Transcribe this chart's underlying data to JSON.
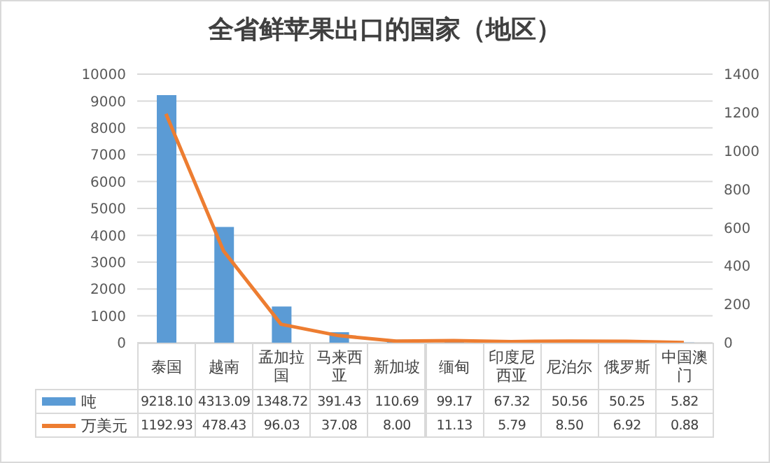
{
  "chart_data": {
    "type": "bar",
    "title": "全省鲜苹果出口的国家（地区）",
    "categories": [
      "泰国",
      "越南",
      "孟加拉国",
      "马来西亚",
      "新加坡",
      "缅甸",
      "印度尼西亚",
      "尼泊尔",
      "俄罗斯",
      "中国澳门"
    ],
    "series": [
      {
        "name": "吨",
        "color": "#5b9bd5",
        "values": [
          9218.1,
          4313.09,
          1348.72,
          391.43,
          110.69,
          99.17,
          67.32,
          50.56,
          50.25,
          5.82
        ],
        "value_labels": [
          "9218.10",
          "4313.09",
          "1348.72",
          "391.43",
          "110.69",
          "99.17",
          "67.32",
          "50.56",
          "50.25",
          "5.82"
        ]
      },
      {
        "name": "万美元",
        "type": "line",
        "axis": "y2",
        "color": "#ed7d31",
        "values": [
          1192.93,
          478.43,
          96.03,
          37.08,
          8.0,
          11.13,
          5.79,
          8.5,
          6.92,
          0.88
        ],
        "value_labels": [
          "1192.93",
          "478.43",
          "96.03",
          "37.08",
          "8.00",
          "11.13",
          "5.79",
          "8.50",
          "6.92",
          "0.88"
        ]
      }
    ],
    "ylim": [
      0,
      10000
    ],
    "yticks": [
      0,
      1000,
      2000,
      3000,
      4000,
      5000,
      6000,
      7000,
      8000,
      9000,
      10000
    ],
    "y2lim": [
      0,
      1400
    ],
    "y2ticks": [
      0,
      200,
      400,
      600,
      800,
      1000,
      1200,
      1400
    ],
    "grid": "y",
    "legend": "bottom",
    "marker": "none",
    "line_style": "solid"
  }
}
